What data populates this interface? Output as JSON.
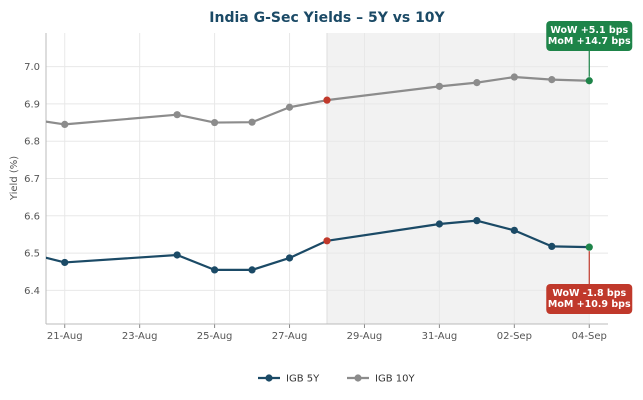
{
  "chart_data": {
    "type": "line",
    "title": "India G-Sec Yields – 5Y vs 10Y",
    "ylabel": "Yield (%)",
    "xlabel": "",
    "x": [
      "2025-08-20",
      "2025-08-21",
      "2025-08-24",
      "2025-08-25",
      "2025-08-26",
      "2025-08-27",
      "2025-08-28",
      "2025-08-31",
      "2025-09-01",
      "2025-09-02",
      "2025-09-03",
      "2025-09-04"
    ],
    "x_tick_labels": [
      "21-Aug",
      "23-Aug",
      "25-Aug",
      "27-Aug",
      "29-Aug",
      "31-Aug",
      "02-Sep",
      "04-Sep"
    ],
    "x_tick_dates": [
      "2025-08-21",
      "2025-08-23",
      "2025-08-25",
      "2025-08-27",
      "2025-08-29",
      "2025-08-31",
      "2025-09-02",
      "2025-09-04"
    ],
    "xlim": [
      "2025-08-20T12:00",
      "2025-09-04T12:00"
    ],
    "ylim": [
      6.31,
      7.09
    ],
    "y_ticks": [
      "6.4",
      "6.5",
      "6.6",
      "6.7",
      "6.8",
      "6.9",
      "7.0"
    ],
    "grid": true,
    "shaded_region": [
      "2025-08-28",
      "2025-09-04"
    ],
    "series": [
      {
        "name": "IGB 5Y",
        "color": "#1b4a66",
        "values": [
          6.5,
          6.475,
          6.495,
          6.455,
          6.455,
          6.487,
          6.533,
          6.578,
          6.587,
          6.561,
          6.518,
          6.516
        ]
      },
      {
        "name": "IGB 10Y",
        "color": "#8c8c8c",
        "values": [
          6.86,
          6.845,
          6.871,
          6.85,
          6.851,
          6.891,
          6.91,
          6.947,
          6.957,
          6.972,
          6.965,
          6.962
        ]
      }
    ],
    "highlight_points": [
      {
        "series": 0,
        "index": 6,
        "color": "#c0392b"
      },
      {
        "series": 0,
        "index": 11,
        "color": "#1e8449"
      },
      {
        "series": 1,
        "index": 6,
        "color": "#c0392b"
      },
      {
        "series": 1,
        "index": 11,
        "color": "#1e8449"
      }
    ],
    "annotations": [
      {
        "series": 1,
        "lines": [
          "WoW +5.1 bps",
          "MoM +14.7 bps"
        ],
        "color": "#1e8449",
        "position": "above"
      },
      {
        "series": 0,
        "lines": [
          "WoW -1.8 bps",
          "MoM +10.9 bps"
        ],
        "color": "#c0392b",
        "position": "below"
      }
    ],
    "legend_position": "bottom-center"
  }
}
